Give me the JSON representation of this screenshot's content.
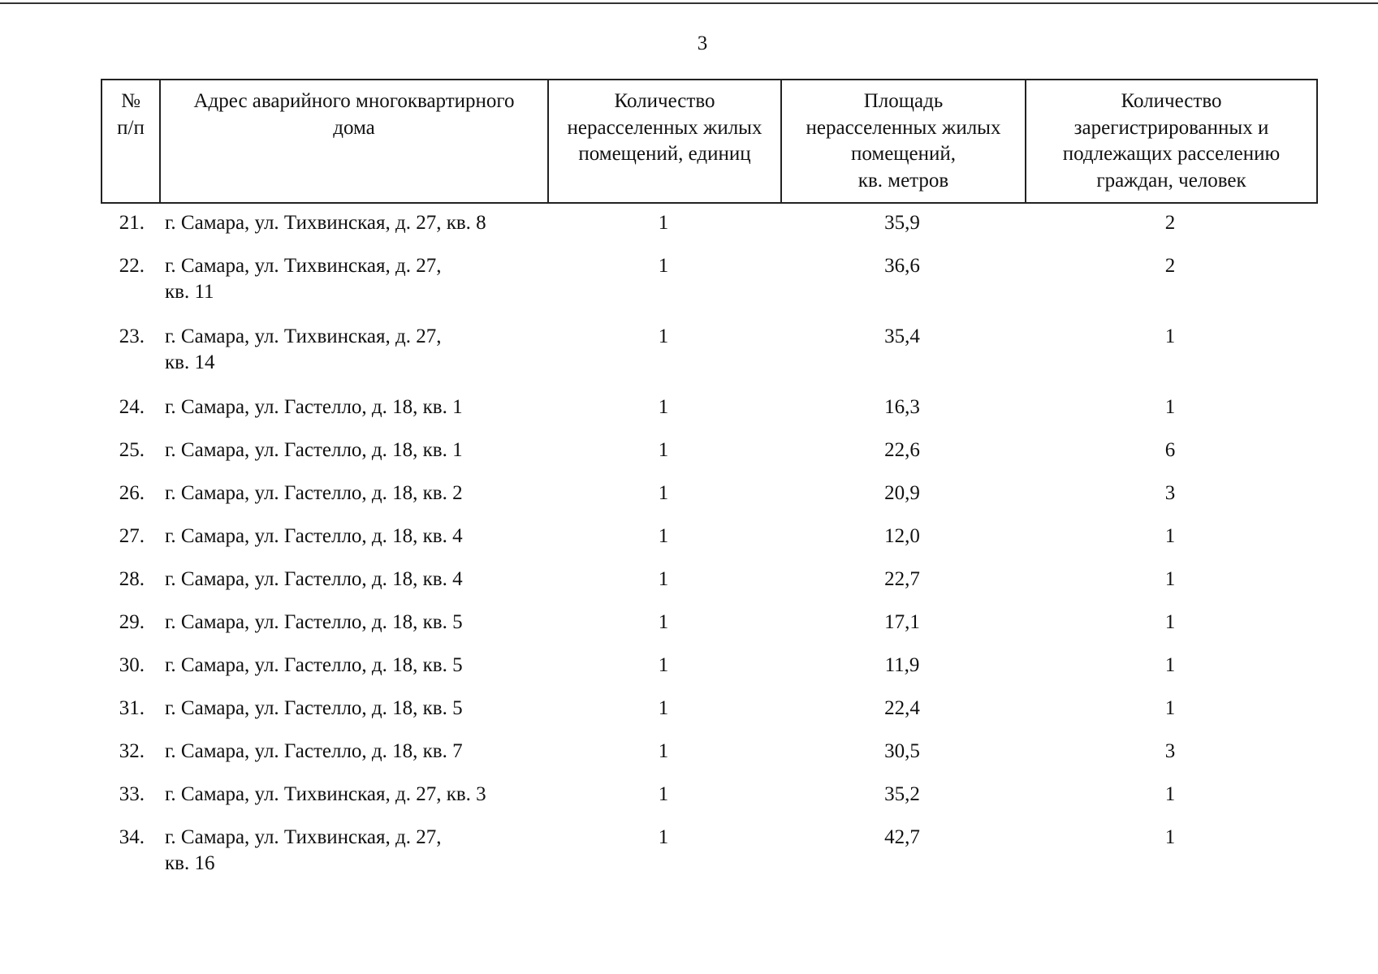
{
  "page_number": "3",
  "table": {
    "headers": [
      "№\nп/п",
      "Адрес аварийного многоквартирного\nдома",
      "Количество\nнерасселенных жилых\nпомещений, единиц",
      "Площадь\nнерасселенных жилых\nпомещений,\nкв. метров",
      "Количество\nзарегистрированных и\nподлежащих расселению\nграждан, человек"
    ],
    "rows": [
      [
        "21.",
        "г. Самара, ул. Тихвинская, д. 27, кв. 8",
        "1",
        "35,9",
        "2"
      ],
      [
        "22.",
        "г. Самара, ул. Тихвинская, д. 27,\nкв. 11",
        "1",
        "36,6",
        "2"
      ],
      [
        "23.",
        "г. Самара, ул. Тихвинская, д. 27,\nкв. 14",
        "1",
        "35,4",
        "1"
      ],
      [
        "24.",
        "г. Самара, ул. Гастелло, д. 18, кв. 1",
        "1",
        "16,3",
        "1"
      ],
      [
        "25.",
        "г. Самара, ул. Гастелло, д. 18, кв. 1",
        "1",
        "22,6",
        "6"
      ],
      [
        "26.",
        "г. Самара, ул. Гастелло, д. 18, кв. 2",
        "1",
        "20,9",
        "3"
      ],
      [
        "27.",
        "г. Самара, ул. Гастелло, д. 18, кв. 4",
        "1",
        "12,0",
        "1"
      ],
      [
        "28.",
        "г. Самара, ул. Гастелло, д. 18, кв. 4",
        "1",
        "22,7",
        "1"
      ],
      [
        "29.",
        "г. Самара, ул. Гастелло, д. 18, кв. 5",
        "1",
        "17,1",
        "1"
      ],
      [
        "30.",
        "г. Самара, ул. Гастелло, д. 18, кв. 5",
        "1",
        "11,9",
        "1"
      ],
      [
        "31.",
        "г. Самара, ул. Гастелло, д. 18, кв. 5",
        "1",
        "22,4",
        "1"
      ],
      [
        "32.",
        "г. Самара, ул. Гастелло, д. 18, кв. 7",
        "1",
        "30,5",
        "3"
      ],
      [
        "33.",
        "г. Самара, ул. Тихвинская, д. 27, кв. 3",
        "1",
        "35,2",
        "1"
      ],
      [
        "34.",
        "г. Самара, ул. Тихвинская, д. 27,\nкв. 16",
        "1",
        "42,7",
        "1"
      ]
    ]
  }
}
